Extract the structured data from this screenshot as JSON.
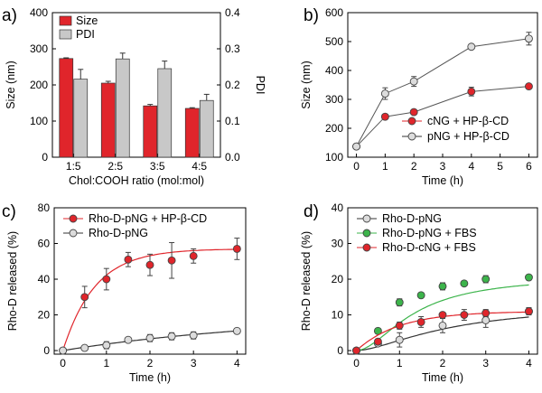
{
  "chart_data": [
    {
      "panel": "a)",
      "type": "bar",
      "xlabel": "Chol:COOH ratio (mol:mol)",
      "ylabel": "Size (nm)",
      "y2label": "PDI",
      "categories": [
        "1:5",
        "2:5",
        "3:5",
        "4:5"
      ],
      "ylim": [
        0,
        400
      ],
      "y2lim": [
        0,
        0.4
      ],
      "yticks": [
        0,
        100,
        200,
        300,
        400
      ],
      "y2ticks": [
        "0.0",
        "0.1",
        "0.2",
        "0.3",
        "0.4"
      ],
      "legend_position": "top-left",
      "series": [
        {
          "name": "Size",
          "axis": "left",
          "color": "#e0252b",
          "values": [
            273,
            205,
            142,
            135
          ],
          "errors": [
            2,
            5,
            4,
            2
          ]
        },
        {
          "name": "PDI",
          "axis": "right",
          "color": "#c8c8c8",
          "values": [
            0.216,
            0.272,
            0.245,
            0.157
          ],
          "errors": [
            0.027,
            0.016,
            0.021,
            0.017
          ]
        }
      ]
    },
    {
      "panel": "b)",
      "type": "line",
      "xlabel": "Time (h)",
      "ylabel": "Size (nm)",
      "xlim": [
        -0.3,
        6.3
      ],
      "ylim": [
        100,
        600
      ],
      "xticks": [
        0,
        1,
        2,
        3,
        4,
        5,
        6
      ],
      "yticks": [
        100,
        200,
        300,
        400,
        500,
        600
      ],
      "legend_position": "bottom-right",
      "series": [
        {
          "name": "cNG + HP-β-CD",
          "color": "#e0252b",
          "marker": "filled",
          "x": [
            0,
            1,
            2,
            4,
            6
          ],
          "y": [
            137,
            240,
            256,
            327,
            345
          ],
          "errors": [
            0,
            0,
            0,
            15,
            0
          ]
        },
        {
          "name": "pNG + HP-β-CD",
          "color": "#c8c8c8",
          "marker": "open",
          "x": [
            0,
            1,
            2,
            4,
            6
          ],
          "y": [
            137,
            320,
            362,
            482,
            510
          ],
          "errors": [
            0,
            20,
            17,
            5,
            22
          ]
        }
      ]
    },
    {
      "panel": "c)",
      "type": "scatter",
      "xlabel": "Time (h)",
      "ylabel": "Rho-D released (%)",
      "xlim": [
        -0.2,
        4.2
      ],
      "ylim": [
        -2,
        80
      ],
      "xticks": [
        0,
        1,
        2,
        3,
        4
      ],
      "yticks": [
        0,
        20,
        40,
        60,
        80
      ],
      "legend_position": "top-left",
      "series": [
        {
          "name": "Rho-D-pNG + HP-β-CD",
          "color": "#e0252b",
          "marker": "filled",
          "x": [
            0,
            0.5,
            1,
            1.5,
            2,
            2.5,
            3,
            4
          ],
          "y": [
            0,
            30,
            40,
            51,
            48,
            50.5,
            53,
            57
          ],
          "errors": [
            0,
            6,
            6,
            4,
            6,
            10,
            4,
            6
          ],
          "fit": {
            "model": "plateau",
            "ymax": 57,
            "rate": 1.35
          }
        },
        {
          "name": "Rho-D-pNG",
          "color": "#c8c8c8",
          "marker": "open",
          "x": [
            0,
            0.5,
            1,
            1.5,
            2,
            2.5,
            3,
            4
          ],
          "y": [
            0,
            1.5,
            3,
            6,
            7,
            8,
            8.5,
            11
          ],
          "errors": [
            0,
            0,
            2,
            1,
            2,
            2,
            2,
            0
          ],
          "fit": {
            "model": "plateau",
            "ymax": 20,
            "rate": 0.2
          }
        }
      ]
    },
    {
      "panel": "d)",
      "type": "scatter",
      "xlabel": "Time (h)",
      "ylabel": "Rho-D released (%)",
      "xlim": [
        -0.2,
        4.2
      ],
      "ylim": [
        -1,
        40
      ],
      "xticks": [
        0,
        1,
        2,
        3,
        4
      ],
      "yticks": [
        0,
        10,
        20,
        30,
        40
      ],
      "legend_position": "top-left",
      "series": [
        {
          "name": "Rho-D-pNG",
          "color": "#c8c8c8",
          "marker": "open",
          "x": [
            0,
            0.5,
            1,
            2,
            3,
            4
          ],
          "y": [
            0,
            2,
            3,
            7,
            8.5,
            11
          ],
          "errors": [
            0,
            0.6,
            2,
            2,
            2,
            1
          ],
          "fit": {
            "model": "hill",
            "ymax": 13,
            "k": 2.2,
            "n": 1.6
          }
        },
        {
          "name": "Rho-D-pNG + FBS",
          "color": "#3cb44b",
          "marker": "filled",
          "x": [
            0,
            0.5,
            1,
            1.5,
            2,
            2.5,
            3,
            4
          ],
          "y": [
            0,
            5.5,
            13.5,
            15.5,
            18,
            18.8,
            20,
            20.5
          ],
          "errors": [
            0,
            0,
            1,
            0,
            1,
            0.5,
            1,
            0
          ],
          "fit": {
            "model": "hill",
            "ymax": 21,
            "k": 1.35,
            "n": 1.8
          }
        },
        {
          "name": "Rho-D-cNG + FBS",
          "color": "#e0252b",
          "marker": "filled",
          "x": [
            0,
            0.5,
            1,
            1.5,
            2,
            2.5,
            3,
            4
          ],
          "y": [
            0,
            2.5,
            7,
            8,
            10,
            10,
            10.5,
            11
          ],
          "errors": [
            0,
            0.5,
            1,
            1.5,
            0.5,
            1.5,
            1,
            1
          ],
          "fit": {
            "model": "plateau",
            "ymax": 11,
            "rate": 1.0
          }
        }
      ]
    }
  ]
}
